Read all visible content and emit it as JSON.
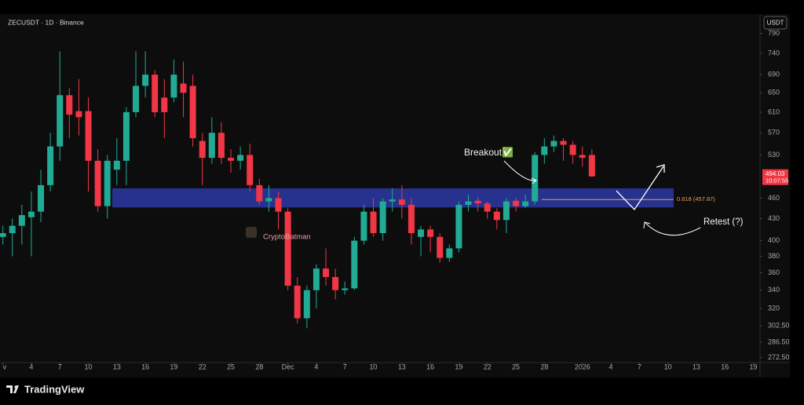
{
  "chart_data": {
    "type": "candlestick",
    "title": "ZECUSDT · 1D · Binance",
    "currency_button": "USDT",
    "log_scale": true,
    "up_color": "#22ab94",
    "down_color": "#f23645",
    "x": [
      1,
      2,
      3,
      4,
      5,
      6,
      7,
      8,
      9,
      10,
      11,
      12,
      13,
      14,
      15,
      16,
      17,
      18,
      19,
      20,
      21,
      22,
      23,
      24,
      25,
      26,
      27,
      28,
      29,
      30,
      31,
      32,
      33,
      34,
      35,
      36,
      37,
      38,
      39,
      40,
      41,
      42,
      43,
      44,
      45,
      46,
      47,
      48,
      49,
      50,
      51,
      52,
      53,
      54,
      55,
      56,
      57,
      58,
      59,
      60,
      61,
      62,
      63
    ],
    "open": [
      405,
      410,
      420,
      432,
      440,
      480,
      545,
      645,
      612,
      612,
      520,
      448,
      505,
      520,
      610,
      665,
      690,
      640,
      640,
      670,
      665,
      555,
      525,
      570,
      525,
      520,
      530,
      480,
      455,
      460,
      440,
      345,
      310,
      340,
      365,
      355,
      340,
      342,
      400,
      440,
      410,
      455,
      458,
      450,
      405,
      415,
      405,
      378,
      390,
      450,
      456,
      452,
      440,
      428,
      456,
      448,
      455,
      530,
      545,
      555,
      548,
      530,
      530
    ],
    "high": [
      420,
      430,
      450,
      470,
      505,
      570,
      745,
      660,
      680,
      640,
      540,
      530,
      560,
      620,
      745,
      745,
      700,
      680,
      725,
      720,
      690,
      570,
      600,
      590,
      540,
      545,
      550,
      490,
      480,
      470,
      445,
      355,
      345,
      370,
      390,
      365,
      350,
      405,
      450,
      460,
      460,
      475,
      480,
      460,
      420,
      420,
      410,
      395,
      455,
      465,
      462,
      455,
      445,
      460,
      460,
      465,
      535,
      560,
      565,
      560,
      555,
      545,
      540
    ],
    "low": [
      395,
      380,
      395,
      380,
      425,
      470,
      520,
      560,
      565,
      470,
      440,
      430,
      480,
      480,
      600,
      640,
      600,
      560,
      630,
      600,
      545,
      480,
      515,
      515,
      500,
      505,
      470,
      450,
      440,
      415,
      340,
      305,
      300,
      320,
      345,
      330,
      335,
      340,
      395,
      405,
      400,
      440,
      430,
      395,
      380,
      385,
      372,
      373,
      385,
      440,
      440,
      430,
      415,
      410,
      440,
      445,
      450,
      515,
      535,
      520,
      515,
      510,
      493
    ],
    "close": [
      410,
      420,
      435,
      440,
      480,
      545,
      645,
      605,
      600,
      520,
      448,
      520,
      520,
      610,
      665,
      690,
      610,
      610,
      690,
      650,
      560,
      525,
      570,
      525,
      520,
      530,
      480,
      455,
      460,
      440,
      345,
      310,
      340,
      365,
      355,
      340,
      342,
      400,
      440,
      410,
      455,
      458,
      450,
      410,
      415,
      405,
      378,
      390,
      450,
      455,
      452,
      440,
      428,
      455,
      448,
      455,
      530,
      545,
      555,
      548,
      530,
      525,
      494.03
    ],
    "xlim": [
      0.7,
      80.7
    ],
    "xticks": [
      {
        "value": 1,
        "label": "v"
      },
      4,
      7,
      10,
      13,
      16,
      19,
      22,
      25,
      28,
      {
        "value": 31,
        "label": "Dec"
      },
      {
        "value": 34,
        "label": "4"
      },
      {
        "value": 37,
        "label": "7"
      },
      {
        "value": 40,
        "label": "10"
      },
      {
        "value": 43,
        "label": "13"
      },
      {
        "value": 46,
        "label": "16"
      },
      {
        "value": 49,
        "label": "19"
      },
      {
        "value": 52,
        "label": "22"
      },
      {
        "value": 55,
        "label": "25"
      },
      {
        "value": 58,
        "label": "28"
      },
      {
        "value": 62,
        "label": "2026"
      },
      {
        "value": 65,
        "label": "4"
      },
      {
        "value": 68,
        "label": "7"
      },
      {
        "value": 71,
        "label": "10"
      },
      {
        "value": 74,
        "label": "13"
      },
      {
        "value": 77,
        "label": "16"
      },
      {
        "value": 80,
        "label": "19"
      }
    ],
    "ylim": [
      268,
      816
    ],
    "yticks": [
      790,
      740,
      690,
      650,
      610,
      570,
      530,
      460,
      430,
      400,
      380,
      360,
      340,
      320,
      {
        "value": 302.5,
        "label": "302.50"
      },
      {
        "value": 286.5,
        "label": "286.50"
      },
      {
        "value": 272.5,
        "label": "272.50"
      }
    ],
    "zone": {
      "low": 446,
      "high": 475,
      "color": "#2b3aa6"
    },
    "fib_level": 457.87,
    "fib_label": "0.618 (457.87)",
    "fib_color": "#f0a04b",
    "last_price": 494.03,
    "countdown": "10:07:55",
    "annotations": {
      "breakout": "Breakout✅",
      "retest": "Retest (?)",
      "watermark": "CryptoBatman"
    },
    "brand": "TradingView"
  }
}
